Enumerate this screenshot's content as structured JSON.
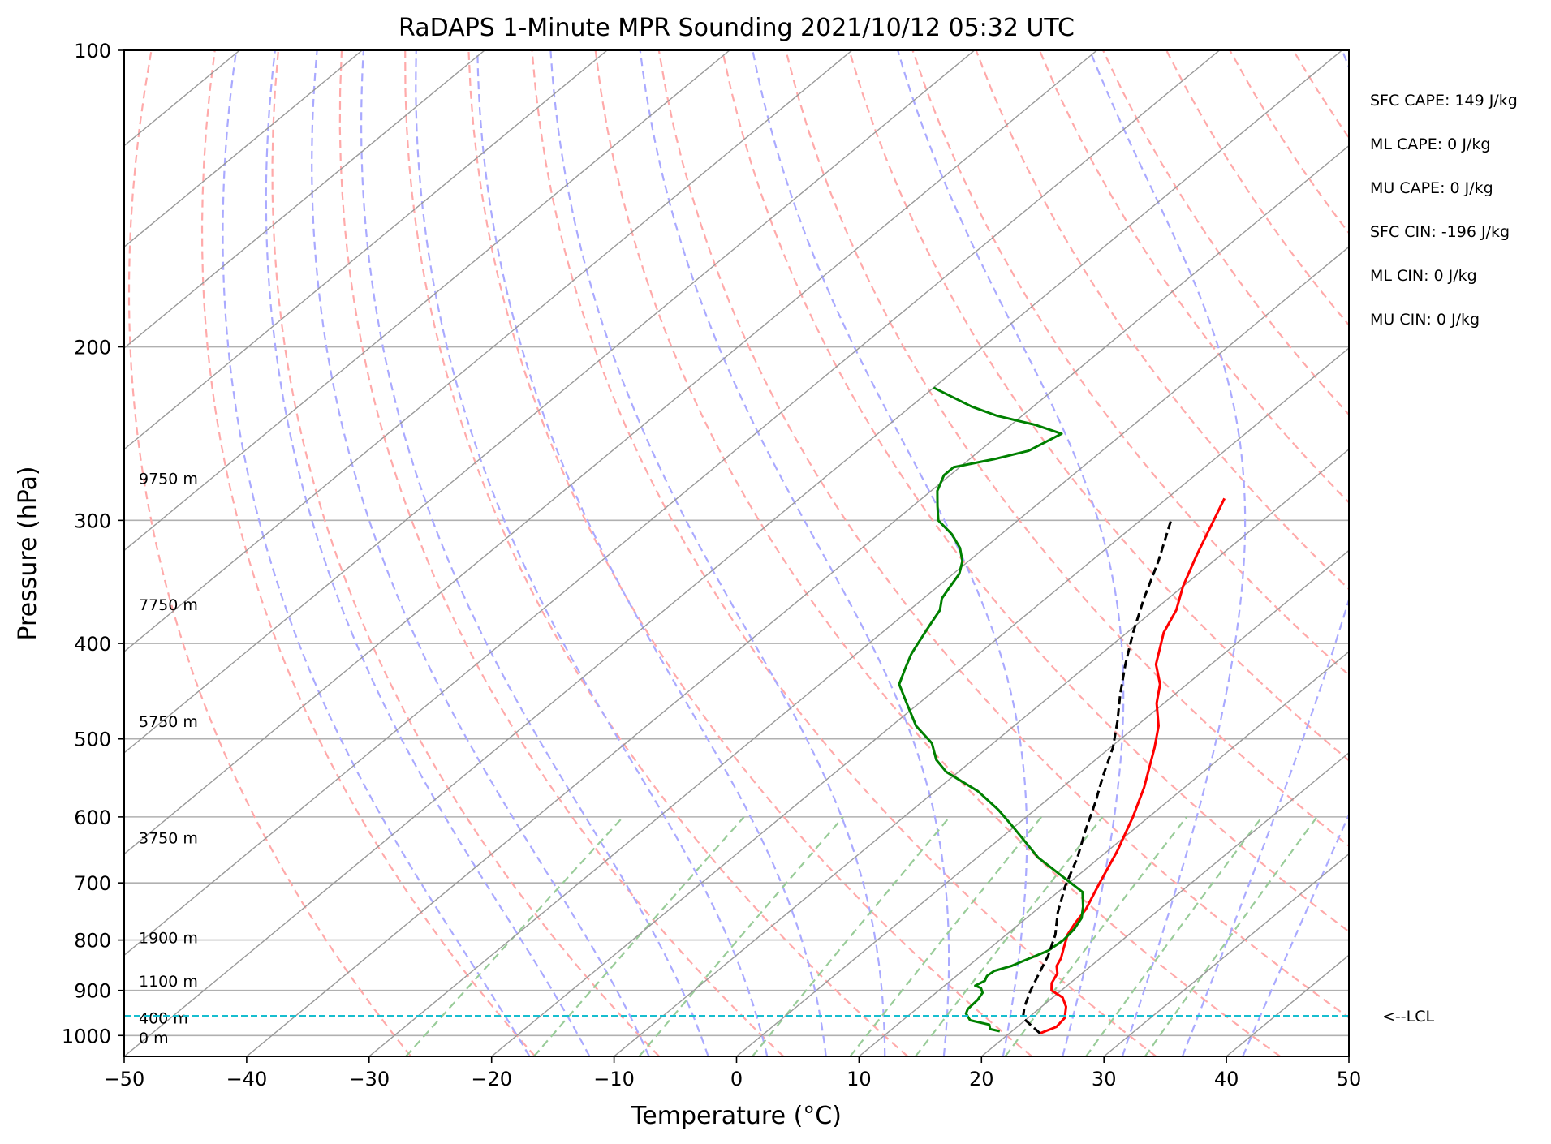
{
  "chart_data": {
    "type": "line",
    "subtype": "skew-T log-P sounding",
    "title": "RaDAPS 1-Minute MPR Sounding 2021/10/12 05:32 UTC",
    "xlabel": "Temperature (°C)",
    "ylabel": "Pressure (hPa)",
    "xlim": [
      -50,
      50
    ],
    "ylim": [
      1050,
      100
    ],
    "y_scale": "log",
    "x_ticks": [
      "−50",
      "−40",
      "−30",
      "−20",
      "−10",
      "0",
      "10",
      "20",
      "30",
      "40",
      "50"
    ],
    "y_ticks": [
      "100",
      "200",
      "300",
      "400",
      "500",
      "600",
      "700",
      "800",
      "900",
      "1000"
    ],
    "grid": true,
    "colors": {
      "temperature": "#ff0000",
      "dewpoint": "#008000",
      "parcel": "#000000",
      "dry_adiabats": "#ffaaaa",
      "moist_adiabats": "#aaaaff",
      "mixing_ratio": "#99cc99",
      "isotherms": "#999999",
      "lcl": "#17becf"
    },
    "series": [
      {
        "key": "temperature",
        "x": [
          22.5,
          23.2,
          23.0,
          22.0,
          20.8,
          19.2,
          18.5,
          18.0,
          17.2,
          16.8,
          16.0,
          15.0,
          14.5,
          14.0,
          12.5,
          10.8,
          8.7,
          6.7,
          3.6,
          1.8,
          -0.6,
          -2.2,
          -4.5,
          -7.0,
          -8.2,
          -10.0,
          -12.0,
          -15.3
        ],
        "y": [
          995,
          980,
          960,
          935,
          915,
          900,
          885,
          865,
          850,
          835,
          815,
          790,
          770,
          745,
          700,
          650,
          600,
          560,
          510,
          485,
          460,
          440,
          420,
          390,
          370,
          350,
          325,
          285
        ]
      },
      {
        "key": "dewpoint",
        "x": [
          19.0,
          18.0,
          17.5,
          15.5,
          14.5,
          14.2,
          14.1,
          13.8,
          13.2,
          12.5,
          12.8,
          12.5,
          12.6,
          13.5,
          14.0,
          15.0,
          15.2,
          15.0,
          14.5,
          13.5,
          12.0,
          5.0,
          0.0,
          -3.0,
          -6.5,
          -11.0,
          -13.0,
          -15.0,
          -18.0,
          -21.0,
          -23.5,
          -24.5,
          -25.5
        ],
        "y": [
          990,
          985,
          975,
          965,
          950,
          940,
          920,
          905,
          895,
          890,
          880,
          870,
          860,
          850,
          840,
          820,
          800,
          780,
          760,
          740,
          715,
          660,
          615,
          590,
          565,
          540,
          525,
          505,
          485,
          460,
          440,
          425,
          410
        ]
      },
      {
        "key": "dewpoint_upper",
        "x": [
          -25.5,
          -26.0,
          -26.5,
          -27.0,
          -27.5,
          -28.5,
          -29.0,
          -29.5,
          -30.5,
          -32.0,
          -34.0,
          -36.5,
          -38.0,
          -39.5,
          -40.5,
          -40.5,
          -38.0,
          -36.0,
          -35.0,
          -38.0,
          -42.0,
          -45.0,
          -50.0
        ],
        "y": [
          410,
          400,
          390,
          380,
          370,
          360,
          350,
          340,
          330,
          320,
          310,
          300,
          290,
          280,
          270,
          265,
          260,
          255,
          245,
          240,
          235,
          230,
          220
        ]
      },
      {
        "key": "parcel",
        "x": [
          22.5,
          19.6,
          18.6,
          17.5,
          16.5,
          15.5,
          14.0,
          12.0,
          10.0,
          8.2,
          6.2,
          4.2,
          2.2,
          0.2,
          -2.0,
          -4.5,
          -7.0,
          -9.5,
          -12.0,
          -14.5,
          -17.5
        ],
        "y": [
          995,
          960,
          935,
          900,
          865,
          830,
          790,
          750,
          705,
          660,
          620,
          580,
          545,
          510,
          480,
          450,
          420,
          390,
          360,
          330,
          300
        ]
      }
    ],
    "lcl_pressure": 955,
    "lcl_label": "<--LCL",
    "height_labels": [
      {
        "text": "9750 m",
        "p": 272
      },
      {
        "text": "7750 m",
        "p": 365
      },
      {
        "text": "5750 m",
        "p": 480
      },
      {
        "text": "3750 m",
        "p": 630
      },
      {
        "text": "1900 m",
        "p": 795
      },
      {
        "text": "1100 m",
        "p": 880
      },
      {
        "text": "400 m",
        "p": 960
      },
      {
        "text": "0 m",
        "p": 1005
      }
    ],
    "indices": [
      "SFC CAPE: 149 J/kg",
      "ML CAPE: 0 J/kg",
      "MU CAPE: 0 J/kg",
      "SFC CIN: -196 J/kg",
      "ML CIN: 0 J/kg",
      "MU CIN: 0 J/kg"
    ]
  }
}
